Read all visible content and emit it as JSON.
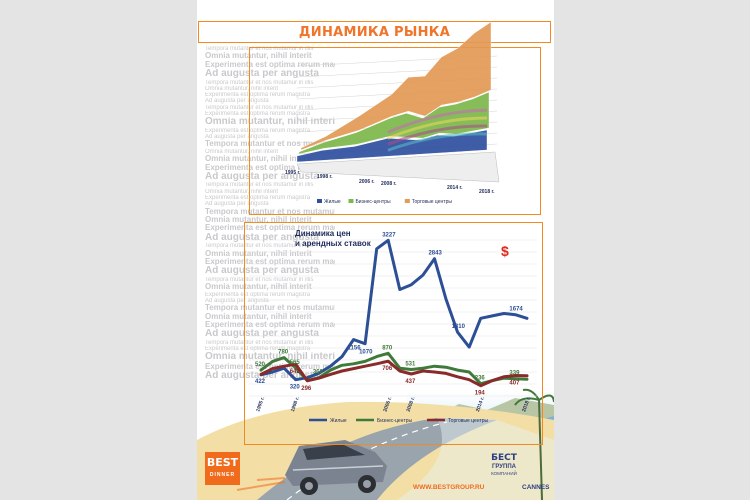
{
  "page": {
    "title": "ДИНАМИКА РЫНКА",
    "background_text": [
      {
        "t": "Tempora mutantur et nos mutamur in illis",
        "c": "s"
      },
      {
        "t": "Omnia mutantur, nihil interit",
        "c": "m"
      },
      {
        "t": "Experimenta est optima rerum magistra",
        "c": "m"
      },
      {
        "t": "Ad augusta per angusta",
        "c": "b"
      },
      {
        "t": "Tempora mutantur et nos mutamur in illis",
        "c": "s"
      },
      {
        "t": "Omnia mutantur, nihil interit",
        "c": "s"
      },
      {
        "t": "Experimenta est optima rerum magistra",
        "c": "s"
      },
      {
        "t": "Ad augusta per angusta",
        "c": "s"
      },
      {
        "t": "Tempora mutantur et nos mutamur in illis",
        "c": "s"
      },
      {
        "t": "Experimenta est optima rerum magistra",
        "c": "s"
      },
      {
        "t": "Omnia mutantur, nihil interit",
        "c": "b"
      },
      {
        "t": "Experimenta est optima rerum magistra",
        "c": "s"
      },
      {
        "t": "Ad augusta per angusta",
        "c": "s"
      },
      {
        "t": "Tempora mutantur et nos mutamur in illis",
        "c": "m"
      },
      {
        "t": "Omnia mutantur, nihil interit",
        "c": "s"
      },
      {
        "t": "Omnia mutantur, nihil interit",
        "c": "m"
      },
      {
        "t": "Experimenta est optima rerum magistra",
        "c": "m"
      },
      {
        "t": "Ad augusta per angusta",
        "c": "b"
      },
      {
        "t": "Tempora mutantur et nos mutamur in illis",
        "c": "s"
      },
      {
        "t": "Omnia mutantur, nihil interit",
        "c": "s"
      },
      {
        "t": "Experimenta est optima rerum magistra",
        "c": "s"
      },
      {
        "t": "Ad augusta per angusta",
        "c": "s"
      },
      {
        "t": "Tempora mutantur et nos mutamur in illis",
        "c": "m"
      },
      {
        "t": "Omnia mutantur, nihil interit",
        "c": "m"
      },
      {
        "t": "Experimenta est optima rerum magistra",
        "c": "m"
      },
      {
        "t": "Ad augusta per angusta",
        "c": "b"
      },
      {
        "t": "Tempora mutantur et nos mutamur in illis",
        "c": "s"
      },
      {
        "t": "Omnia mutantur, nihil interit",
        "c": "m"
      },
      {
        "t": "Experimenta est optima rerum magistra",
        "c": "m"
      },
      {
        "t": "Ad augusta per angusta",
        "c": "b"
      },
      {
        "t": "Tempora mutantur et nos mutamur in illis",
        "c": "s"
      },
      {
        "t": "Omnia mutantur, nihil interit",
        "c": "m"
      },
      {
        "t": "Experimenta est optima rerum magistra",
        "c": "s"
      },
      {
        "t": "Ad augusta per angusta",
        "c": "s"
      },
      {
        "t": "Tempora mutantur et nos mutamur in illis",
        "c": "m"
      },
      {
        "t": "Omnia mutantur, nihil interit",
        "c": "m"
      },
      {
        "t": "Experimenta est optima rerum magistra",
        "c": "m"
      },
      {
        "t": "Ad augusta per angusta",
        "c": "b"
      },
      {
        "t": "Tempora mutantur et nos mutamur in illis",
        "c": "s"
      },
      {
        "t": "Experimenta est optima rerum magistra",
        "c": "s"
      },
      {
        "t": "Omnia mutantur, nihil interit",
        "c": "b"
      },
      {
        "t": "Experimenta est optima rerum magistra",
        "c": "m"
      },
      {
        "t": "Ad augusta per angusta",
        "c": "b"
      }
    ],
    "logos": {
      "best_dinner_line1": "BEST",
      "best_dinner_line2": "DINNER",
      "group_line1": "БЕСТ",
      "group_line2": "ГРУППА",
      "group_line3": "КОМПАНИЙ"
    },
    "footer": {
      "url": "WWW.BESTGROUP.RU",
      "city": "CANNES"
    }
  },
  "chart_data": [
    {
      "type": "area",
      "stacked": true,
      "three_d": true,
      "title": "",
      "x_labels": [
        "1995 г.",
        "1998 г.",
        "2006 г.",
        "2008 г.",
        "2014 г.",
        "2018 г."
      ],
      "x": [
        1995,
        1998,
        2002,
        2006,
        2008,
        2010,
        2012,
        2014,
        2016,
        2018
      ],
      "series": [
        {
          "name": "Жилые",
          "color": "#2f4fa0",
          "values": [
            3,
            5,
            6,
            9,
            8,
            7,
            9,
            8,
            9,
            10
          ]
        },
        {
          "name": "Бизнес-центры",
          "color": "#7db84a",
          "values": [
            1,
            3,
            6,
            9,
            12,
            10,
            13,
            15,
            16,
            18
          ]
        },
        {
          "name": "Торговые центры",
          "color": "#e29a55",
          "values": [
            1,
            2,
            7,
            11,
            17,
            20,
            24,
            27,
            32,
            34
          ]
        }
      ],
      "extra_bands": [
        "#56b8c4",
        "#a84b8a",
        "#e8d45a",
        "#c56bb2"
      ],
      "legend": "bottom"
    },
    {
      "type": "line",
      "title": "Динамика цен и арендных ставок",
      "symbol": "$",
      "x_labels": [
        "1995 г.",
        "1998 г.",
        "2006 г.",
        "2008 г.",
        "2014 г.",
        "2018 г."
      ],
      "x": [
        1995,
        1996,
        1997,
        1998,
        1999,
        2000,
        2001,
        2002,
        2003,
        2004,
        2005,
        2006,
        2007,
        2008,
        2009,
        2010,
        2011,
        2012,
        2013,
        2014,
        2015,
        2016,
        2017,
        2018
      ],
      "series": [
        {
          "name": "Жилые",
          "color": "#2c4f95",
          "values": [
            422,
            480,
            560,
            320,
            360,
            450,
            600,
            800,
            1156,
            1070,
            3050,
            3227,
            2200,
            2300,
            2500,
            2843,
            2000,
            1310,
            1000,
            1600,
            1650,
            1700,
            1674,
            1600
          ],
          "labels": {
            "0": "422",
            "3": "320",
            "8": "1156",
            "9": "1070",
            "11": "3227",
            "15": "2843",
            "17": "1310",
            "22": "1674"
          }
        },
        {
          "name": "Бизнес-центры",
          "color": "#3f7a3a",
          "values": [
            520,
            700,
            780,
            565,
            300,
            360,
            520,
            620,
            650,
            700,
            800,
            870,
            560,
            531,
            560,
            600,
            580,
            520,
            480,
            236,
            300,
            350,
            339,
            330
          ],
          "labels": {
            "0": "520",
            "2": "780",
            "3": "565",
            "5": "360",
            "11": "870",
            "13": "531",
            "19": "236",
            "22": "339"
          }
        },
        {
          "name": "Торговые центры",
          "color": "#8a2a2a",
          "values": [
            430,
            550,
            600,
            642,
            296,
            350,
            430,
            500,
            550,
            600,
            650,
            706,
            500,
            437,
            500,
            480,
            450,
            380,
            320,
            194,
            300,
            380,
            407,
            400
          ],
          "labels": {
            "3": "642",
            "4": "296",
            "11": "706",
            "13": "437",
            "19": "194",
            "22": "407"
          }
        }
      ],
      "legend": "bottom"
    }
  ]
}
